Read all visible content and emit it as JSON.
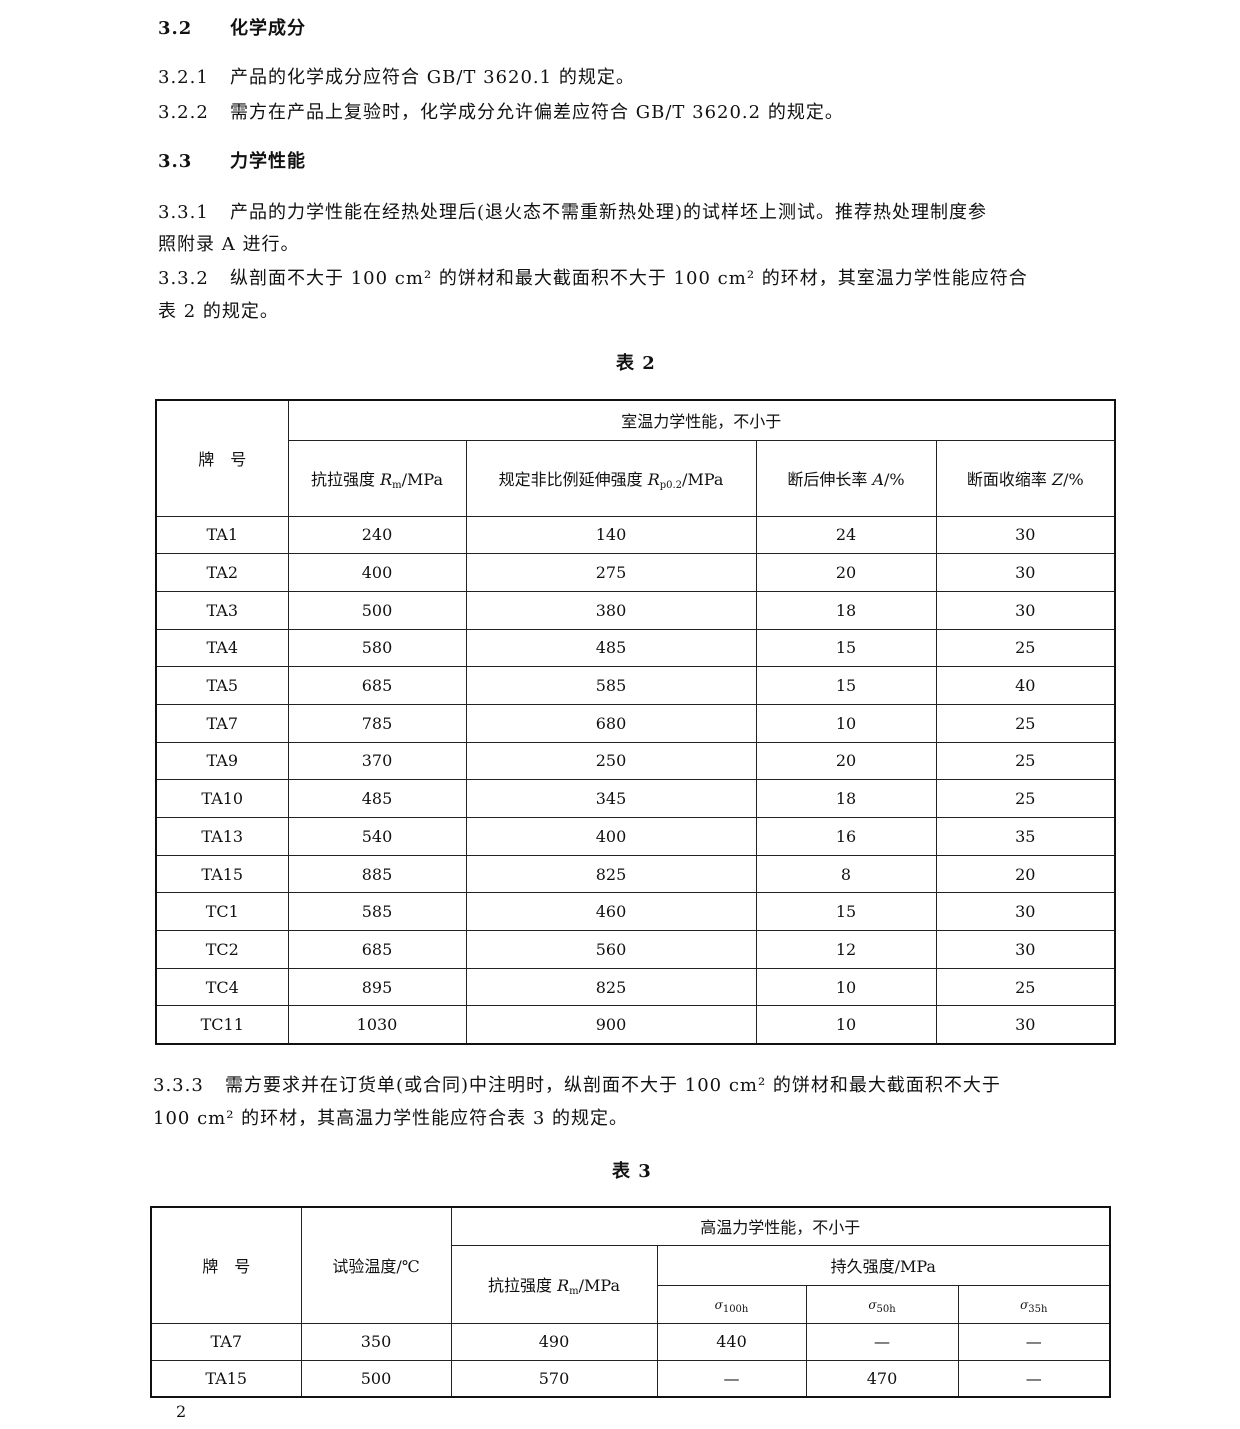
{
  "sections": [
    {
      "num": "3.2",
      "text": "化学成分",
      "heading": true
    },
    {
      "num": "3.2.1",
      "text": "产品的化学成分应符合 GB/T 3620.1 的规定。"
    },
    {
      "num": "3.2.2",
      "text": "需方在产品上复验时，化学成分允许偏差应符合 GB/T 3620.2 的规定。"
    },
    {
      "num": "3.3",
      "text": "力学性能",
      "heading": true
    },
    {
      "num": "3.3.1",
      "text": "产品的力学性能在经热处理后(退火态不需重新热处理)的试样坯上测试。推荐热处理制度参",
      "cont": "照附录 A 进行。"
    },
    {
      "num": "3.3.2",
      "text": "纵剖面不大于 100 cm² 的饼材和最大截面积不大于 100 cm² 的环材，其室温力学性能应符合",
      "cont": "表 2 的规定。"
    },
    {
      "num": "3.3.3",
      "text": "需方要求并在订货单(或合同)中注明时，纵剖面不大于 100 cm² 的饼材和最大截面积不大于",
      "cont": "100 cm² 的环材，其高温力学性能应符合表 3 的规定。"
    }
  ],
  "table2": {
    "caption": "表 2",
    "grade_header": "牌　号",
    "group_header": "室温力学性能，不小于",
    "columns": [
      {
        "label": "抗拉强度 ",
        "sym": "R",
        "sub": "m",
        "unit": "/MPa"
      },
      {
        "label": "规定非比例延伸强度 ",
        "sym": "R",
        "sub": "p0.2",
        "unit": "/MPa"
      },
      {
        "label": "断后伸长率 ",
        "sym": "A",
        "sub": "",
        "unit": "/%"
      },
      {
        "label": "断面收缩率 ",
        "sym": "Z",
        "sub": "",
        "unit": "/%"
      }
    ],
    "rows": [
      [
        "TA1",
        "240",
        "140",
        "24",
        "30"
      ],
      [
        "TA2",
        "400",
        "275",
        "20",
        "30"
      ],
      [
        "TA3",
        "500",
        "380",
        "18",
        "30"
      ],
      [
        "TA4",
        "580",
        "485",
        "15",
        "25"
      ],
      [
        "TA5",
        "685",
        "585",
        "15",
        "40"
      ],
      [
        "TA7",
        "785",
        "680",
        "10",
        "25"
      ],
      [
        "TA9",
        "370",
        "250",
        "20",
        "25"
      ],
      [
        "TA10",
        "485",
        "345",
        "18",
        "25"
      ],
      [
        "TA13",
        "540",
        "400",
        "16",
        "35"
      ],
      [
        "TA15",
        "885",
        "825",
        "8",
        "20"
      ],
      [
        "TC1",
        "585",
        "460",
        "15",
        "30"
      ],
      [
        "TC2",
        "685",
        "560",
        "12",
        "30"
      ],
      [
        "TC4",
        "895",
        "825",
        "10",
        "25"
      ],
      [
        "TC11",
        "1030",
        "900",
        "10",
        "30"
      ]
    ]
  },
  "table3": {
    "caption": "表 3",
    "grade_header": "牌　号",
    "temp_header": "试验温度/℃",
    "group_header": "高温力学性能，不小于",
    "tensile": {
      "label": "抗拉强度 ",
      "sym": "R",
      "sub": "m",
      "unit": "/MPa"
    },
    "rupture_header": "持久强度/MPa",
    "rupture_cols": [
      {
        "sym": "σ",
        "sub": "100h"
      },
      {
        "sym": "σ",
        "sub": "50h"
      },
      {
        "sym": "σ",
        "sub": "35h"
      }
    ],
    "rows": [
      [
        "TA7",
        "350",
        "490",
        "440",
        "—",
        "—"
      ],
      [
        "TA15",
        "500",
        "570",
        "—",
        "470",
        "—"
      ]
    ]
  },
  "page_number": "2"
}
